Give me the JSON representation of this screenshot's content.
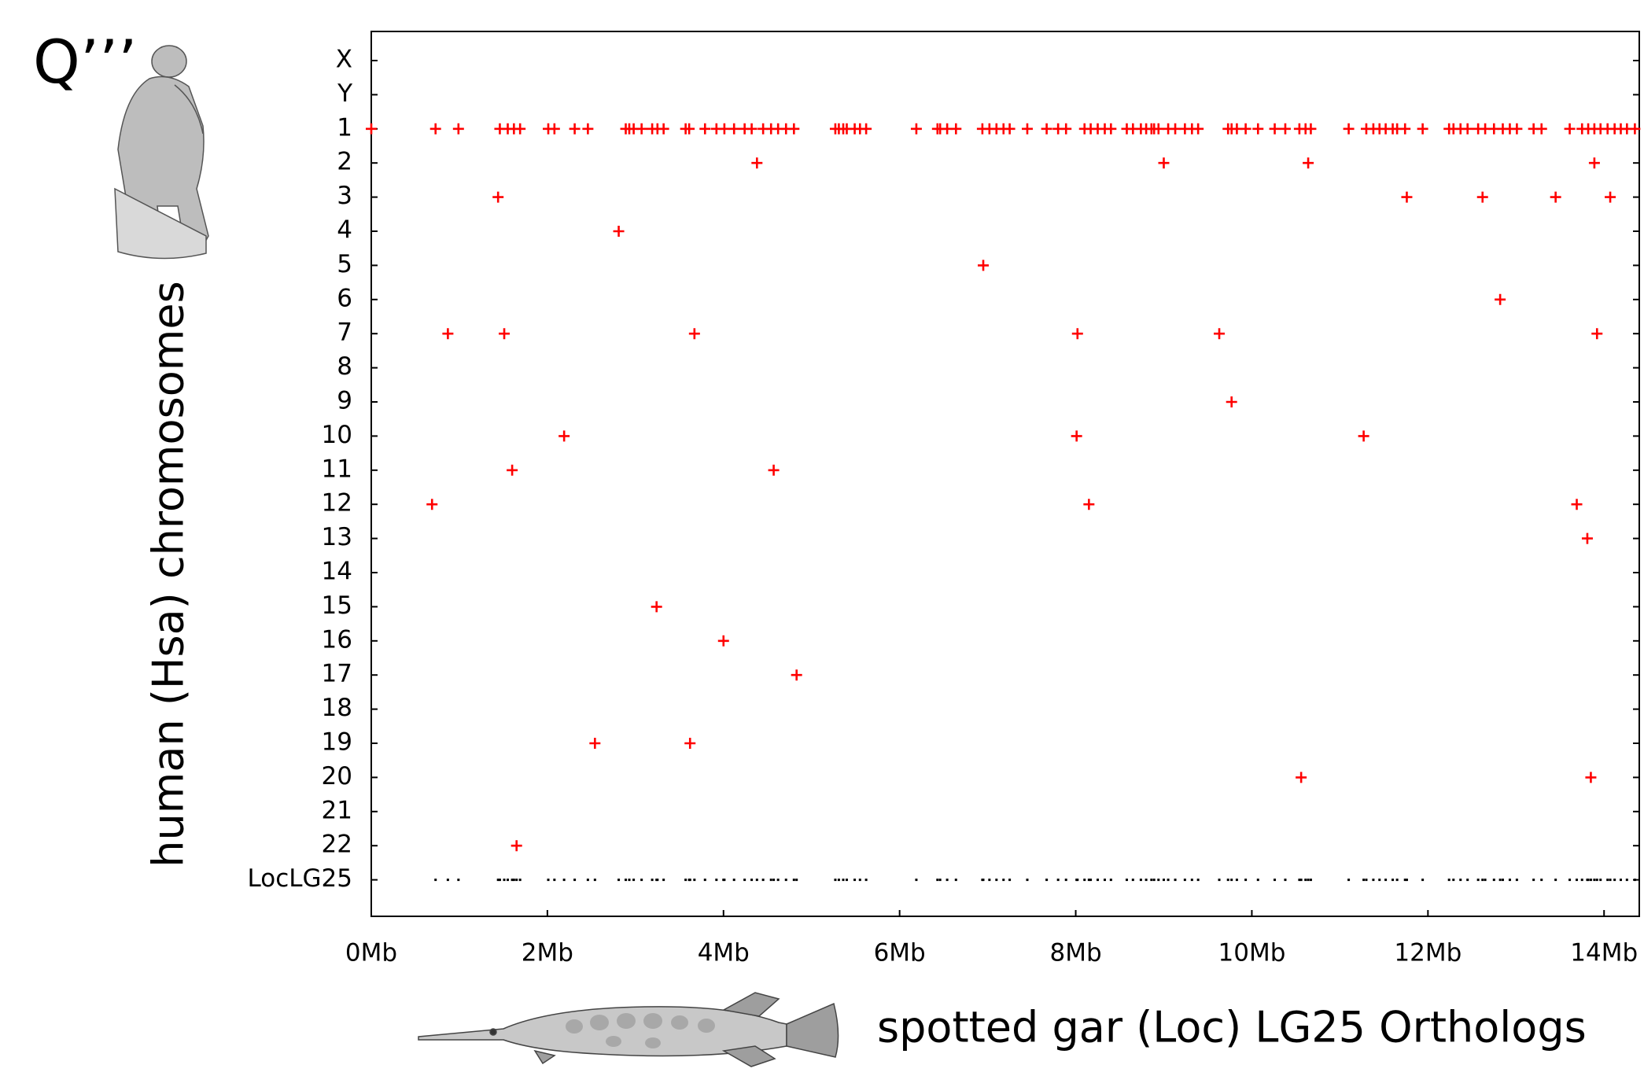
{
  "panel_label": "Q’’’",
  "chart_data": {
    "type": "scatter",
    "y_label": "human (Hsa) chromosomes",
    "x_label": "spotted gar (Loc) LG25 Orthologs",
    "categories": [
      "X",
      "Y",
      "1",
      "2",
      "3",
      "4",
      "5",
      "6",
      "7",
      "8",
      "9",
      "10",
      "11",
      "12",
      "13",
      "14",
      "15",
      "16",
      "17",
      "18",
      "19",
      "20",
      "21",
      "22",
      "LocLG25"
    ],
    "xlim": [
      0,
      14.4
    ],
    "xticks": [
      {
        "value": 0,
        "label": "0Mb"
      },
      {
        "value": 2,
        "label": "2Mb"
      },
      {
        "value": 4,
        "label": "4Mb"
      },
      {
        "value": 6,
        "label": "6Mb"
      },
      {
        "value": 8,
        "label": "8Mb"
      },
      {
        "value": 10,
        "label": "10Mb"
      },
      {
        "value": 12,
        "label": "12Mb"
      },
      {
        "value": 14,
        "label": "14Mb"
      }
    ],
    "series": [
      {
        "color": "#ff0000",
        "marker": "plus",
        "points": [
          {
            "y": "1",
            "x": [
              0,
              0.73,
              0.99,
              1.46,
              1.55,
              1.62,
              1.69,
              2.01,
              2.08,
              2.31,
              2.46,
              2.89,
              2.93,
              2.98,
              3.07,
              3.19,
              3.25,
              3.32,
              3.57,
              3.61,
              3.79,
              3.92,
              4.01,
              4.12,
              4.24,
              4.32,
              4.45,
              4.54,
              4.62,
              4.71,
              4.8,
              5.27,
              5.31,
              5.36,
              5.4,
              5.49,
              5.55,
              5.62,
              6.19,
              6.43,
              6.46,
              6.54,
              6.64,
              6.94,
              7.02,
              7.1,
              7.18,
              7.25,
              7.45,
              7.67,
              7.8,
              7.89,
              8.1,
              8.17,
              8.25,
              8.33,
              8.4,
              8.58,
              8.65,
              8.74,
              8.8,
              8.86,
              8.89,
              8.94,
              9.05,
              9.13,
              9.24,
              9.32,
              9.39,
              9.73,
              9.77,
              9.83,
              9.93,
              10.07,
              10.26,
              10.38,
              10.54,
              10.61,
              10.67,
              11.1,
              11.3,
              11.38,
              11.45,
              11.52,
              11.6,
              11.65,
              11.74,
              11.94,
              12.24,
              12.29,
              12.37,
              12.45,
              12.57,
              12.65,
              12.75,
              12.85,
              12.93,
              13.01,
              13.2,
              13.29,
              13.61,
              13.75,
              13.82,
              13.89,
              13.96,
              14.04,
              14.12,
              14.19,
              14.26,
              14.35
            ]
          },
          {
            "y": "2",
            "x": [
              4.38,
              9.0,
              10.64,
              13.89
            ]
          },
          {
            "y": "3",
            "x": [
              1.44,
              11.76,
              12.62,
              13.45,
              14.07
            ]
          },
          {
            "y": "4",
            "x": [
              2.81
            ]
          },
          {
            "y": "5",
            "x": [
              6.95
            ]
          },
          {
            "y": "6",
            "x": [
              12.82
            ]
          },
          {
            "y": "7",
            "x": [
              0.87,
              1.51,
              3.67,
              8.02,
              9.63,
              13.92
            ]
          },
          {
            "y": "9",
            "x": [
              9.77
            ]
          },
          {
            "y": "10",
            "x": [
              2.19,
              8.01,
              11.27
            ]
          },
          {
            "y": "11",
            "x": [
              1.6,
              4.57
            ]
          },
          {
            "y": "12",
            "x": [
              0.69,
              8.15,
              13.69
            ]
          },
          {
            "y": "13",
            "x": [
              13.81
            ]
          },
          {
            "y": "15",
            "x": [
              3.24
            ]
          },
          {
            "y": "16",
            "x": [
              4.0
            ]
          },
          {
            "y": "17",
            "x": [
              4.83
            ]
          },
          {
            "y": "19",
            "x": [
              2.54,
              3.62
            ]
          },
          {
            "y": "20",
            "x": [
              10.56,
              13.85
            ]
          },
          {
            "y": "22",
            "x": [
              1.65
            ]
          }
        ]
      },
      {
        "color": "#000000",
        "marker": "dash",
        "points": [
          {
            "y": "LocLG25",
            "x": [
              0.73,
              0.87,
              0.99,
              1.44,
              1.46,
              1.51,
              1.55,
              1.6,
              1.62,
              1.65,
              1.69,
              2.01,
              2.08,
              2.19,
              2.31,
              2.46,
              2.54,
              2.81,
              2.89,
              2.93,
              2.98,
              3.07,
              3.19,
              3.24,
              3.25,
              3.32,
              3.57,
              3.61,
              3.62,
              3.67,
              3.79,
              3.92,
              4.0,
              4.01,
              4.12,
              4.24,
              4.32,
              4.38,
              4.45,
              4.54,
              4.57,
              4.62,
              4.71,
              4.8,
              4.83,
              5.27,
              5.31,
              5.36,
              5.4,
              5.49,
              5.55,
              5.62,
              6.19,
              6.43,
              6.46,
              6.54,
              6.64,
              6.94,
              6.95,
              7.02,
              7.1,
              7.18,
              7.25,
              7.45,
              7.67,
              7.8,
              7.89,
              8.01,
              8.02,
              8.1,
              8.15,
              8.17,
              8.25,
              8.33,
              8.4,
              8.58,
              8.65,
              8.74,
              8.8,
              8.86,
              8.89,
              8.94,
              9.0,
              9.05,
              9.13,
              9.24,
              9.32,
              9.39,
              9.63,
              9.73,
              9.77,
              9.83,
              9.93,
              10.07,
              10.26,
              10.38,
              10.54,
              10.56,
              10.61,
              10.64,
              10.67,
              11.1,
              11.27,
              11.3,
              11.38,
              11.45,
              11.52,
              11.6,
              11.65,
              11.74,
              11.76,
              11.94,
              12.24,
              12.29,
              12.37,
              12.45,
              12.57,
              12.62,
              12.65,
              12.75,
              12.82,
              12.85,
              12.93,
              13.01,
              13.2,
              13.29,
              13.45,
              13.61,
              13.69,
              13.75,
              13.81,
              13.82,
              13.85,
              13.89,
              13.92,
              13.96,
              14.04,
              14.07,
              14.12,
              14.19,
              14.26,
              14.35
            ]
          }
        ]
      }
    ]
  }
}
